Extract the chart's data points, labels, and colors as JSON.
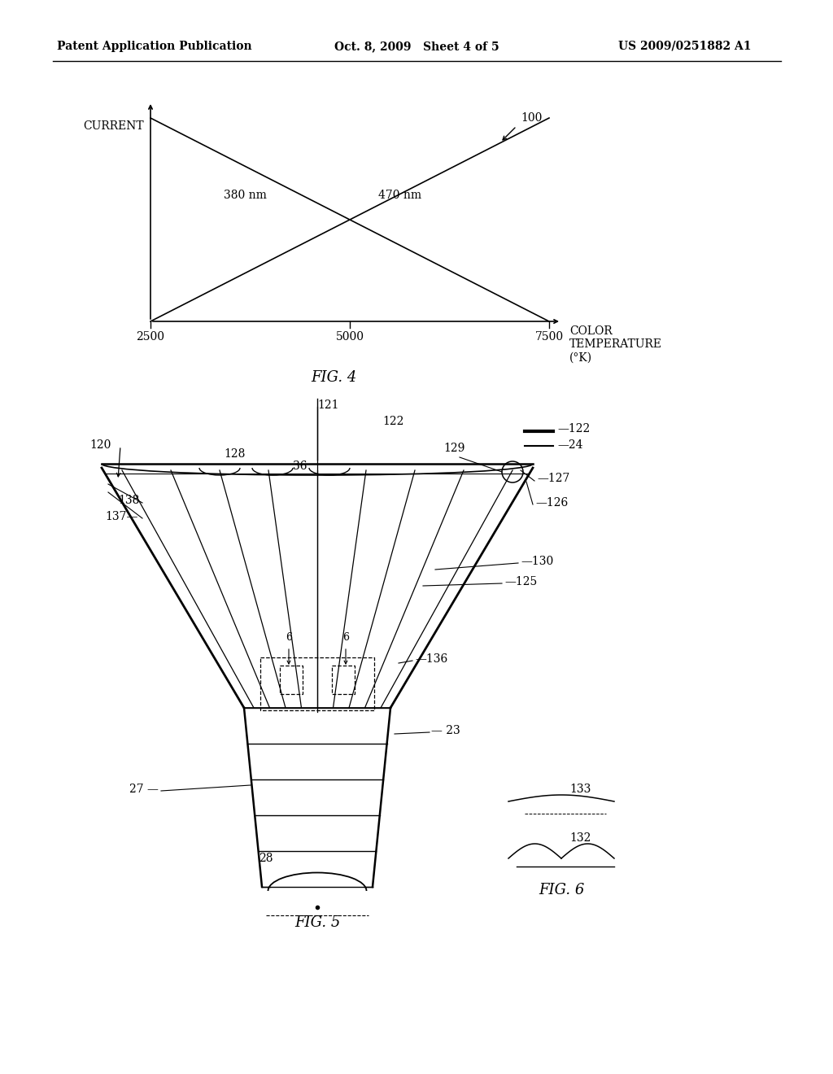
{
  "bg_color": "#ffffff",
  "header_left": "Patent Application Publication",
  "header_mid": "Oct. 8, 2009   Sheet 4 of 5",
  "header_right": "US 2009/0251882 A1",
  "fig4_title": "FIG. 4",
  "fig5_title": "FIG. 5",
  "fig6_title": "FIG. 6",
  "fig4_xlabel": "COLOR\nTEMPERATURE\n(°K)",
  "fig4_ylabel": "CURRENT",
  "fig4_xticks": [
    "2500",
    "5000",
    "7500"
  ],
  "label_380nm": "380 nm",
  "label_470nm": "470 nm",
  "label_100": "100"
}
